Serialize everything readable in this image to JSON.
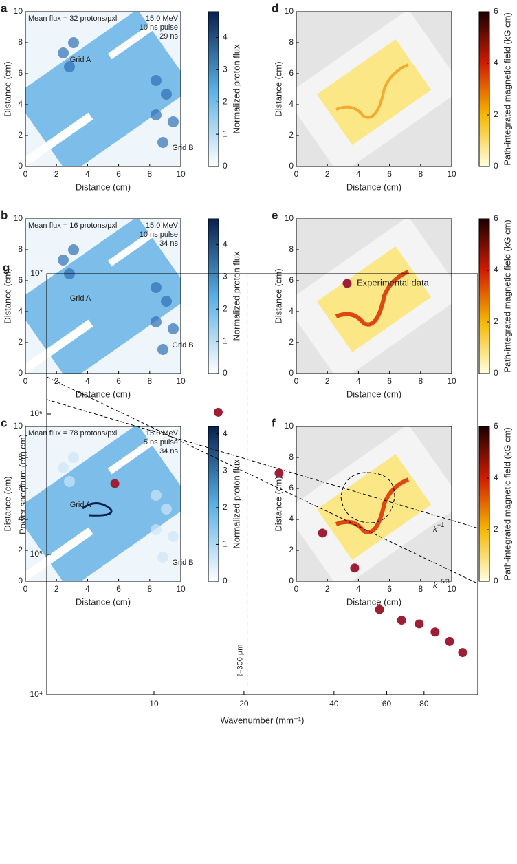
{
  "chart_data": [
    {
      "type": "image",
      "label": "a",
      "xlabel": "Distance (cm)",
      "ylabel": "Distance (cm)",
      "xlim": [
        0,
        10
      ],
      "ylim": [
        0,
        10
      ],
      "xticks": [
        0,
        2,
        4,
        6,
        8,
        10
      ],
      "yticks": [
        0,
        2,
        4,
        6,
        8,
        10
      ],
      "colorbar_label": "Normalized proton flux",
      "clim": [
        0,
        4.8
      ],
      "cticks": [
        0,
        1,
        2,
        3,
        4
      ],
      "cmap": [
        "#ffffff",
        "#5aaee3",
        "#08214f"
      ],
      "annotation": "Mean flux = 32 protons/pxl",
      "info": [
        "15.0 MeV",
        "10 ns pulse",
        "29 ns"
      ],
      "grid_labels": [
        "Grid A",
        "Grid B"
      ]
    },
    {
      "type": "image",
      "label": "b",
      "xlabel": "Distance (cm)",
      "ylabel": "Distance (cm)",
      "xlim": [
        0,
        10
      ],
      "ylim": [
        0,
        10
      ],
      "xticks": [
        0,
        2,
        4,
        6,
        8,
        10
      ],
      "yticks": [
        0,
        2,
        4,
        6,
        8,
        10
      ],
      "colorbar_label": "Normalized proton flux",
      "clim": [
        0,
        4.8
      ],
      "cticks": [
        0,
        1,
        2,
        3,
        4
      ],
      "cmap": [
        "#ffffff",
        "#5aaee3",
        "#08214f"
      ],
      "annotation": "Mean flux = 16 protons/pxl",
      "info": [
        "15.0 MeV",
        "10 ns pulse",
        "34 ns"
      ],
      "grid_labels": [
        "Grid A",
        "Grid B"
      ]
    },
    {
      "type": "image",
      "label": "c",
      "xlabel": "Distance (cm)",
      "ylabel": "Distance (cm)",
      "xlim": [
        0,
        10
      ],
      "ylim": [
        0,
        10
      ],
      "xticks": [
        0,
        2,
        4,
        6,
        8,
        10
      ],
      "yticks": [
        0,
        2,
        4,
        6,
        8,
        10
      ],
      "colorbar_label": "Normalized proton flux",
      "clim": [
        0,
        4.2
      ],
      "cticks": [
        0,
        1,
        2,
        3,
        4
      ],
      "cmap": [
        "#ffffff",
        "#5aaee3",
        "#08214f"
      ],
      "annotation": "Mean flux = 78 protons/pxl",
      "info": [
        "15.0 MeV",
        "5 ns pulse",
        "34 ns"
      ],
      "grid_labels": [
        "Grid A",
        "Grid B"
      ]
    },
    {
      "type": "image",
      "label": "d",
      "xlabel": "Distance (cm)",
      "ylabel": "Distance (cm)",
      "xlim": [
        0,
        10
      ],
      "ylim": [
        0,
        10
      ],
      "xticks": [
        0,
        2,
        4,
        6,
        8,
        10
      ],
      "yticks": [
        0,
        2,
        4,
        6,
        8,
        10
      ],
      "colorbar_label": "Path-integrated magnetic field (kG cm)",
      "clim": [
        0,
        6
      ],
      "cticks": [
        0,
        2,
        4,
        6
      ],
      "cmap": [
        "#ffffe0",
        "#f5b800",
        "#d11c00",
        "#1a0000"
      ]
    },
    {
      "type": "image",
      "label": "e",
      "xlabel": "Distance (cm)",
      "ylabel": "Distance (cm)",
      "xlim": [
        0,
        10
      ],
      "ylim": [
        0,
        10
      ],
      "xticks": [
        0,
        2,
        4,
        6,
        8,
        10
      ],
      "yticks": [
        0,
        2,
        4,
        6,
        8,
        10
      ],
      "colorbar_label": "Path-integrated magnetic field (kG cm)",
      "clim": [
        0,
        6
      ],
      "cticks": [
        0,
        2,
        4,
        6
      ],
      "cmap": [
        "#ffffe0",
        "#f5b800",
        "#d11c00",
        "#1a0000"
      ]
    },
    {
      "type": "image",
      "label": "f",
      "xlabel": "Distance (cm)",
      "ylabel": "Distance (cm)",
      "xlim": [
        0,
        10
      ],
      "ylim": [
        0,
        10
      ],
      "xticks": [
        0,
        2,
        4,
        6,
        8,
        10
      ],
      "yticks": [
        0,
        2,
        4,
        6,
        8,
        10
      ],
      "colorbar_label": "Path-integrated magnetic field (kG cm)",
      "clim": [
        0,
        6
      ],
      "cticks": [
        0,
        2,
        4,
        6
      ],
      "cmap": [
        "#ffffe0",
        "#f5b800",
        "#d11c00",
        "#1a0000"
      ]
    },
    {
      "type": "scatter",
      "label": "g",
      "xlabel": "Wavenumber (mm⁻¹)",
      "ylabel": "Power spectrum (erg cm)",
      "log_x": true,
      "log_y": true,
      "xlim": [
        4.38,
        121
      ],
      "ylim": [
        10000,
        10000000
      ],
      "xticks": [
        10,
        20,
        40,
        60,
        80
      ],
      "yticks": [
        {
          "value": 10000,
          "label": "10⁴"
        },
        {
          "value": 100000,
          "label": "10⁵"
        },
        {
          "value": 1000000,
          "label": "10⁶"
        },
        {
          "value": 10000000,
          "label": "10⁷"
        }
      ],
      "legend": "upper right",
      "series": [
        {
          "name": "Experimental data",
          "color": "#9e1f35",
          "x": [
            7.4,
            16.4,
            26.2,
            36.6,
            46.9,
            56.8,
            67.3,
            77.1,
            87.1,
            97.4,
            107.7
          ],
          "values": [
            320000,
            1030000,
            380000,
            142000,
            80000,
            40500,
            34000,
            32000,
            28000,
            24000,
            20000
          ]
        }
      ],
      "lines": [
        {
          "label": "k",
          "exponent": "−1",
          "x": [
            4.38,
            121
          ],
          "y": [
            1270000,
            154000
          ]
        },
        {
          "label": "k",
          "exponent": "−5/3",
          "x": [
            4.38,
            121
          ],
          "y": [
            1840000,
            62000
          ]
        }
      ],
      "vline": {
        "x": 20.5,
        "label": "ℓ=300 µm"
      }
    }
  ]
}
